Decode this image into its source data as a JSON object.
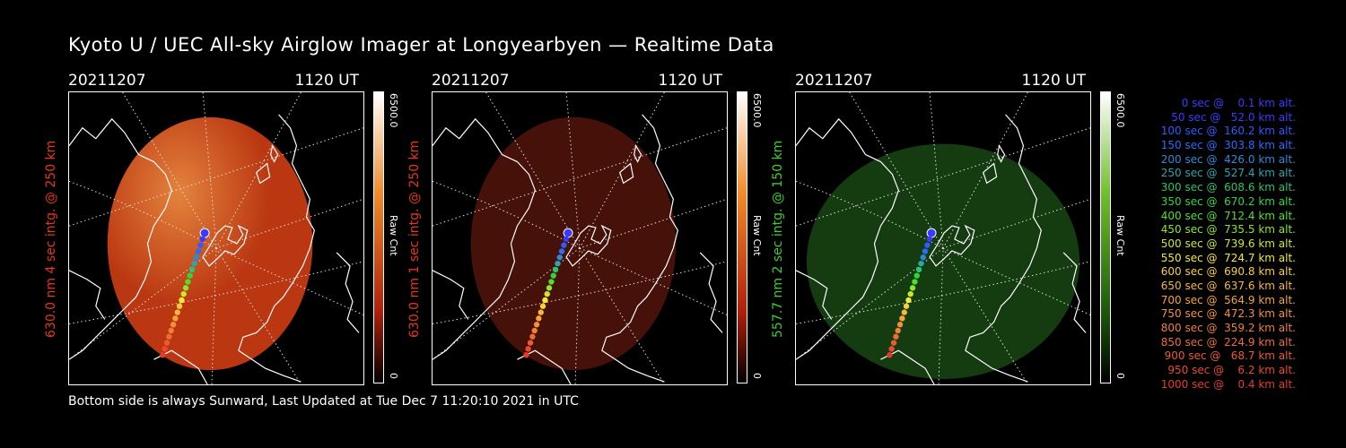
{
  "title": "Kyoto U / UEC All-sky Airglow Imager at Longyearbyen — Realtime Data",
  "footer": "Bottom side is always Sunward, Last Updated at Tue Dec  7 11:20:10 2021 in UTC",
  "panels": [
    {
      "date": "20211207",
      "time": "1120 UT",
      "ylabel": "630.0 nm 4 sec intg. @ 250 km",
      "label_color": "#e8361a",
      "cbar_max": "6500.0",
      "cbar_min": "0",
      "cbar_unit": "Raw Cnt",
      "colormap": "red",
      "fill": "#c43a12",
      "fill_opacity": 0.95
    },
    {
      "date": "20211207",
      "time": "1120 UT",
      "ylabel": "630.0 nm 1 sec intg. @ 250 km",
      "label_color": "#e8361a",
      "cbar_max": "6500.0",
      "cbar_min": "0",
      "cbar_unit": "Raw Cnt",
      "colormap": "red",
      "fill": "#4a1208",
      "fill_opacity": 0.95
    },
    {
      "date": "20211207",
      "time": "1120 UT",
      "ylabel": "557.7 nm 2 sec intg. @ 150 km",
      "label_color": "#3ad12a",
      "cbar_max": "6500.0",
      "cbar_min": "0",
      "cbar_unit": "Raw Cnt",
      "colormap": "green",
      "fill": "#163e12",
      "fill_opacity": 0.95
    }
  ],
  "legend": [
    {
      "text": "0 sec @    0.1 km alt.",
      "color": "#3b3bff"
    },
    {
      "text": "50 sec @   52.0 km alt.",
      "color": "#3b3bff"
    },
    {
      "text": "100 sec @  160.2 km alt.",
      "color": "#2f5bff"
    },
    {
      "text": "150 sec @  303.8 km alt.",
      "color": "#2a6cff"
    },
    {
      "text": "200 sec @  426.0 km alt.",
      "color": "#2d8bd6"
    },
    {
      "text": "250 sec @  527.4 km alt.",
      "color": "#29a7b0"
    },
    {
      "text": "300 sec @  608.6 km alt.",
      "color": "#2cc36f"
    },
    {
      "text": "350 sec @  670.2 km alt.",
      "color": "#31d63e"
    },
    {
      "text": "400 sec @  712.4 km alt.",
      "color": "#4ee02a"
    },
    {
      "text": "450 sec @  735.5 km alt.",
      "color": "#8ee52a"
    },
    {
      "text": "500 sec @  739.6 km alt.",
      "color": "#c9e82c"
    },
    {
      "text": "550 sec @  724.7 km alt.",
      "color": "#f2ea30"
    },
    {
      "text": "600 sec @  690.8 km alt.",
      "color": "#f7d03a"
    },
    {
      "text": "650 sec @  637.6 km alt.",
      "color": "#f6b73c"
    },
    {
      "text": "700 sec @  564.9 km alt.",
      "color": "#f5a33c"
    },
    {
      "text": "750 sec @  472.3 km alt.",
      "color": "#f3913a"
    },
    {
      "text": "800 sec @  359.2 km alt.",
      "color": "#f07f38"
    },
    {
      "text": "850 sec @  224.9 km alt.",
      "color": "#ee6d35"
    },
    {
      "text": "900 sec @   68.7 km alt.",
      "color": "#ec5a32"
    },
    {
      "text": "950 sec @    6.2 km alt.",
      "color": "#ea4a2f"
    },
    {
      "text": "1000 sec @    0.4 km alt.",
      "color": "#e83a2c"
    }
  ]
}
